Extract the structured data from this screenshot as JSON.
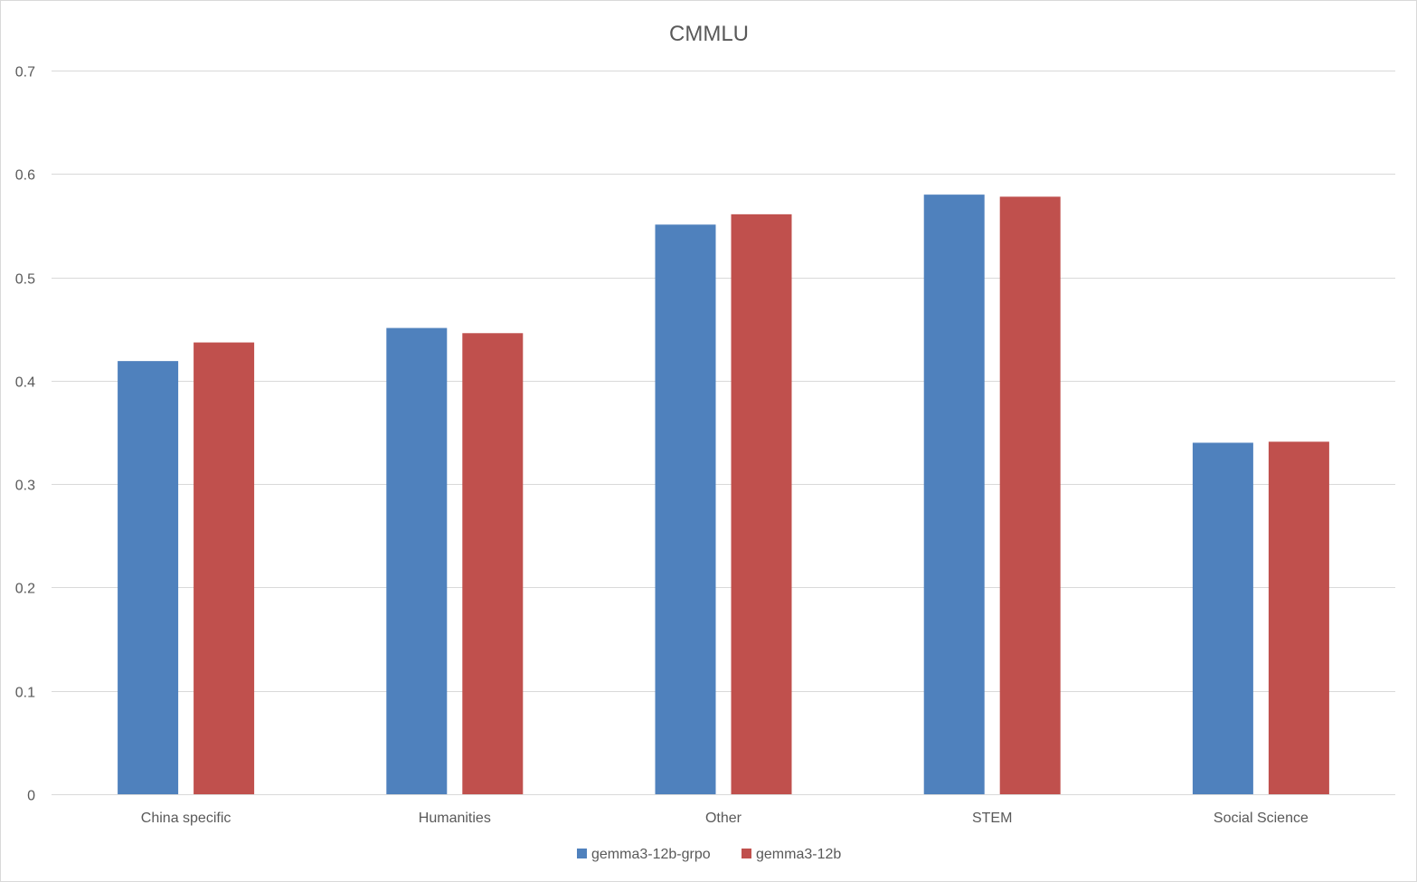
{
  "chart_data": {
    "type": "bar",
    "title": "CMMLU",
    "xlabel": "",
    "ylabel": "",
    "ylim": [
      0,
      0.7
    ],
    "yticks": [
      "0",
      "0.1",
      "0.2",
      "0.3",
      "0.4",
      "0.5",
      "0.6",
      "0.7"
    ],
    "ytick_values": [
      0,
      0.1,
      0.2,
      0.3,
      0.4,
      0.5,
      0.6,
      0.7
    ],
    "grid": true,
    "legend_position": "bottom",
    "categories": [
      "China specific",
      "Humanities",
      "Other",
      "STEM",
      "Social Science"
    ],
    "series": [
      {
        "name": "gemma3-12b-grpo",
        "color": "#4F81BD",
        "values": [
          0.419,
          0.451,
          0.551,
          0.58,
          0.34
        ]
      },
      {
        "name": "gemma3-12b",
        "color": "#C0504D",
        "values": [
          0.437,
          0.446,
          0.561,
          0.578,
          0.341
        ]
      }
    ]
  }
}
